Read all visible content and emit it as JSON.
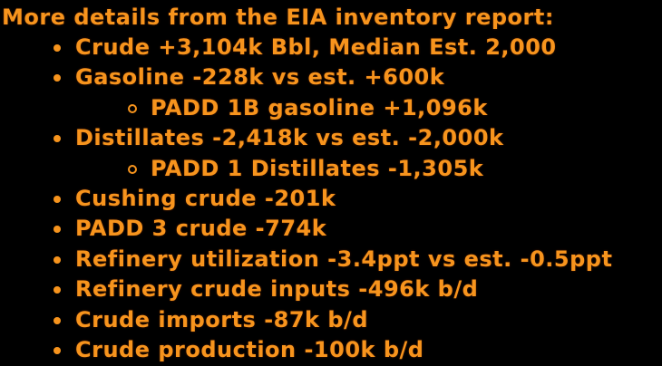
{
  "page": {
    "background_color": "#000000",
    "text_color": "#f7941d"
  },
  "report": {
    "title": "More details from the EIA inventory report:",
    "items": [
      {
        "level": 1,
        "text": "Crude +3,104k Bbl, Median Est. 2,000"
      },
      {
        "level": 1,
        "text": "Gasoline -228k vs est. +600k"
      },
      {
        "level": 2,
        "text": "PADD 1B gasoline +1,096k"
      },
      {
        "level": 1,
        "text": "Distillates -2,418k vs est. -2,000k"
      },
      {
        "level": 2,
        "text": "PADD 1 Distillates -1,305k"
      },
      {
        "level": 1,
        "text": "Cushing crude -201k"
      },
      {
        "level": 1,
        "text": "PADD 3 crude -774k"
      },
      {
        "level": 1,
        "text": "Refinery utilization -3.4ppt vs est. -0.5ppt"
      },
      {
        "level": 1,
        "text": "Refinery crude inputs -496k b/d"
      },
      {
        "level": 1,
        "text": "Crude imports -87k b/d"
      },
      {
        "level": 1,
        "text": "Crude production -100k b/d"
      }
    ]
  }
}
